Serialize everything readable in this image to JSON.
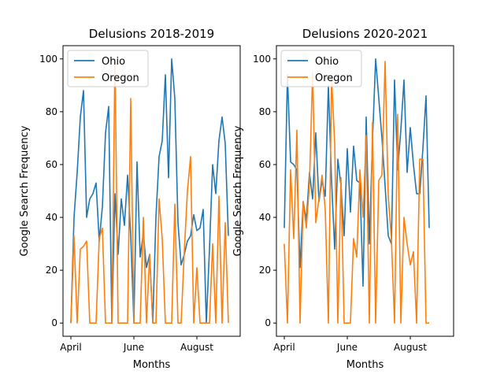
{
  "chart_data": [
    {
      "type": "line",
      "title": "Delusions 2018-2019",
      "xlabel": "Months",
      "ylabel": "Google Search Frequency",
      "ylim": [
        -5,
        105
      ],
      "yticks": [
        0,
        20,
        40,
        60,
        80,
        100
      ],
      "xticks": [
        {
          "x": 0,
          "label": "April"
        },
        {
          "x": 20,
          "label": "June"
        },
        {
          "x": 40,
          "label": "August"
        }
      ],
      "legend": "top-left",
      "series": [
        {
          "name": "Ohio",
          "color": "#1f77b4",
          "values": [
            0,
            40,
            57,
            78,
            88,
            40,
            47,
            49,
            53,
            31,
            44,
            72,
            82,
            0,
            49,
            26,
            47,
            37,
            56,
            33,
            0,
            61,
            25,
            34,
            21,
            26,
            0,
            40,
            63,
            69,
            94,
            55,
            100,
            85,
            38,
            22,
            26,
            31,
            33,
            41,
            35,
            36,
            43,
            0,
            28,
            60,
            49,
            69,
            78,
            68,
            33
          ]
        },
        {
          "name": "Oregon",
          "color": "#ff7f0e",
          "values": [
            0,
            33,
            0,
            28,
            29,
            31,
            0,
            0,
            0,
            32,
            36,
            0,
            0,
            0,
            100,
            0,
            0,
            0,
            0,
            85,
            0,
            0,
            0,
            40,
            0,
            26,
            0,
            0,
            47,
            32,
            0,
            0,
            0,
            45,
            0,
            0,
            27,
            50,
            63,
            0,
            21,
            0,
            0,
            0,
            0,
            30,
            0,
            48,
            0,
            38,
            0
          ]
        }
      ]
    },
    {
      "type": "line",
      "title": "Delusions 2020-2021",
      "xlabel": "Months",
      "ylabel": "Google Search Frequency",
      "ylim": [
        -5,
        105
      ],
      "yticks": [
        0,
        20,
        40,
        60,
        80,
        100
      ],
      "xticks": [
        {
          "x": 0,
          "label": "April"
        },
        {
          "x": 20,
          "label": "June"
        },
        {
          "x": 40,
          "label": "August"
        }
      ],
      "legend": "top-left",
      "series": [
        {
          "name": "Ohio",
          "color": "#1f77b4",
          "values": [
            36,
            94,
            61,
            60,
            58,
            21,
            46,
            39,
            57,
            47,
            72,
            46,
            54,
            48,
            90,
            54,
            28,
            62,
            52,
            33,
            66,
            42,
            67,
            54,
            53,
            14,
            78,
            30,
            69,
            100,
            85,
            70,
            52,
            33,
            30,
            92,
            58,
            73,
            92,
            57,
            74,
            60,
            49,
            49,
            66,
            86,
            36
          ]
        },
        {
          "name": "Oregon",
          "color": "#ff7f0e",
          "values": [
            30,
            0,
            58,
            32,
            73,
            0,
            46,
            36,
            53,
            95,
            38,
            47,
            56,
            43,
            0,
            93,
            68,
            0,
            55,
            0,
            0,
            0,
            32,
            25,
            58,
            40,
            71,
            0,
            76,
            0,
            54,
            56,
            99,
            48,
            32,
            0,
            79,
            0,
            40,
            30,
            22,
            27,
            0,
            62,
            62,
            0,
            0
          ]
        }
      ]
    }
  ]
}
